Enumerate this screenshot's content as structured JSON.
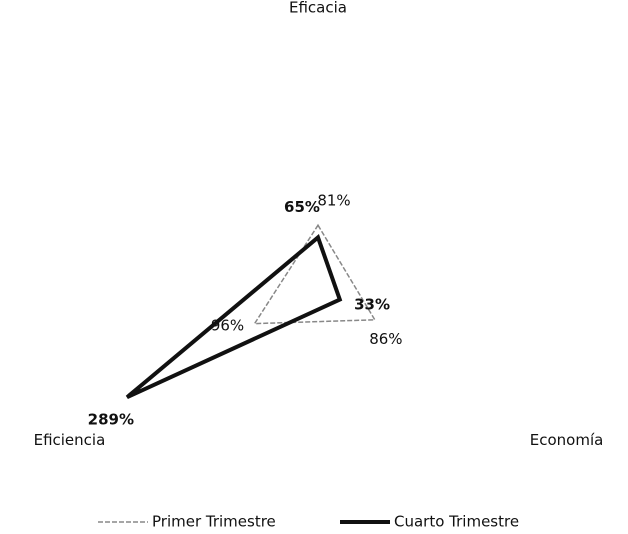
{
  "chart_data": {
    "type": "radar",
    "categories": [
      "Eficacia",
      "Economía",
      "Eficiencia"
    ],
    "rlim": [
      0,
      350
    ],
    "series": [
      {
        "name": "Primer Trimestre",
        "color": "#888888",
        "values": [
          81,
          86,
          96
        ],
        "value_labels": [
          "81%",
          "86%",
          "96%"
        ]
      },
      {
        "name": "Cuarto Trimestre",
        "color": "#111111",
        "values": [
          65,
          33,
          289
        ],
        "value_labels": [
          "65%",
          "33%",
          "289%"
        ]
      }
    ],
    "legend": "bottom"
  }
}
